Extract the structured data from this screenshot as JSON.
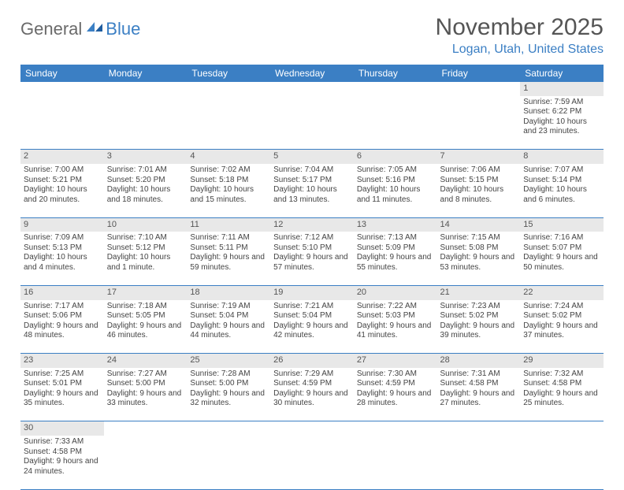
{
  "logo": {
    "part1": "General",
    "part2": "Blue"
  },
  "title": "November 2025",
  "location": "Logan, Utah, United States",
  "colors": {
    "header_bg": "#3b7fc4",
    "header_text": "#ffffff",
    "daynum_bg": "#e8e8e8",
    "row_border": "#3b7fc4",
    "title_color": "#555555",
    "location_color": "#3b7fc4",
    "logo_gray": "#6a6a6a",
    "logo_blue": "#3b7fc4"
  },
  "weekdays": [
    "Sunday",
    "Monday",
    "Tuesday",
    "Wednesday",
    "Thursday",
    "Friday",
    "Saturday"
  ],
  "first_weekday_index": 6,
  "days": [
    {
      "n": 1,
      "sunrise": "7:59 AM",
      "sunset": "6:22 PM",
      "daylight": "10 hours and 23 minutes."
    },
    {
      "n": 2,
      "sunrise": "7:00 AM",
      "sunset": "5:21 PM",
      "daylight": "10 hours and 20 minutes."
    },
    {
      "n": 3,
      "sunrise": "7:01 AM",
      "sunset": "5:20 PM",
      "daylight": "10 hours and 18 minutes."
    },
    {
      "n": 4,
      "sunrise": "7:02 AM",
      "sunset": "5:18 PM",
      "daylight": "10 hours and 15 minutes."
    },
    {
      "n": 5,
      "sunrise": "7:04 AM",
      "sunset": "5:17 PM",
      "daylight": "10 hours and 13 minutes."
    },
    {
      "n": 6,
      "sunrise": "7:05 AM",
      "sunset": "5:16 PM",
      "daylight": "10 hours and 11 minutes."
    },
    {
      "n": 7,
      "sunrise": "7:06 AM",
      "sunset": "5:15 PM",
      "daylight": "10 hours and 8 minutes."
    },
    {
      "n": 8,
      "sunrise": "7:07 AM",
      "sunset": "5:14 PM",
      "daylight": "10 hours and 6 minutes."
    },
    {
      "n": 9,
      "sunrise": "7:09 AM",
      "sunset": "5:13 PM",
      "daylight": "10 hours and 4 minutes."
    },
    {
      "n": 10,
      "sunrise": "7:10 AM",
      "sunset": "5:12 PM",
      "daylight": "10 hours and 1 minute."
    },
    {
      "n": 11,
      "sunrise": "7:11 AM",
      "sunset": "5:11 PM",
      "daylight": "9 hours and 59 minutes."
    },
    {
      "n": 12,
      "sunrise": "7:12 AM",
      "sunset": "5:10 PM",
      "daylight": "9 hours and 57 minutes."
    },
    {
      "n": 13,
      "sunrise": "7:13 AM",
      "sunset": "5:09 PM",
      "daylight": "9 hours and 55 minutes."
    },
    {
      "n": 14,
      "sunrise": "7:15 AM",
      "sunset": "5:08 PM",
      "daylight": "9 hours and 53 minutes."
    },
    {
      "n": 15,
      "sunrise": "7:16 AM",
      "sunset": "5:07 PM",
      "daylight": "9 hours and 50 minutes."
    },
    {
      "n": 16,
      "sunrise": "7:17 AM",
      "sunset": "5:06 PM",
      "daylight": "9 hours and 48 minutes."
    },
    {
      "n": 17,
      "sunrise": "7:18 AM",
      "sunset": "5:05 PM",
      "daylight": "9 hours and 46 minutes."
    },
    {
      "n": 18,
      "sunrise": "7:19 AM",
      "sunset": "5:04 PM",
      "daylight": "9 hours and 44 minutes."
    },
    {
      "n": 19,
      "sunrise": "7:21 AM",
      "sunset": "5:04 PM",
      "daylight": "9 hours and 42 minutes."
    },
    {
      "n": 20,
      "sunrise": "7:22 AM",
      "sunset": "5:03 PM",
      "daylight": "9 hours and 41 minutes."
    },
    {
      "n": 21,
      "sunrise": "7:23 AM",
      "sunset": "5:02 PM",
      "daylight": "9 hours and 39 minutes."
    },
    {
      "n": 22,
      "sunrise": "7:24 AM",
      "sunset": "5:02 PM",
      "daylight": "9 hours and 37 minutes."
    },
    {
      "n": 23,
      "sunrise": "7:25 AM",
      "sunset": "5:01 PM",
      "daylight": "9 hours and 35 minutes."
    },
    {
      "n": 24,
      "sunrise": "7:27 AM",
      "sunset": "5:00 PM",
      "daylight": "9 hours and 33 minutes."
    },
    {
      "n": 25,
      "sunrise": "7:28 AM",
      "sunset": "5:00 PM",
      "daylight": "9 hours and 32 minutes."
    },
    {
      "n": 26,
      "sunrise": "7:29 AM",
      "sunset": "4:59 PM",
      "daylight": "9 hours and 30 minutes."
    },
    {
      "n": 27,
      "sunrise": "7:30 AM",
      "sunset": "4:59 PM",
      "daylight": "9 hours and 28 minutes."
    },
    {
      "n": 28,
      "sunrise": "7:31 AM",
      "sunset": "4:58 PM",
      "daylight": "9 hours and 27 minutes."
    },
    {
      "n": 29,
      "sunrise": "7:32 AM",
      "sunset": "4:58 PM",
      "daylight": "9 hours and 25 minutes."
    },
    {
      "n": 30,
      "sunrise": "7:33 AM",
      "sunset": "4:58 PM",
      "daylight": "9 hours and 24 minutes."
    }
  ],
  "labels": {
    "sunrise": "Sunrise:",
    "sunset": "Sunset:",
    "daylight": "Daylight:"
  }
}
